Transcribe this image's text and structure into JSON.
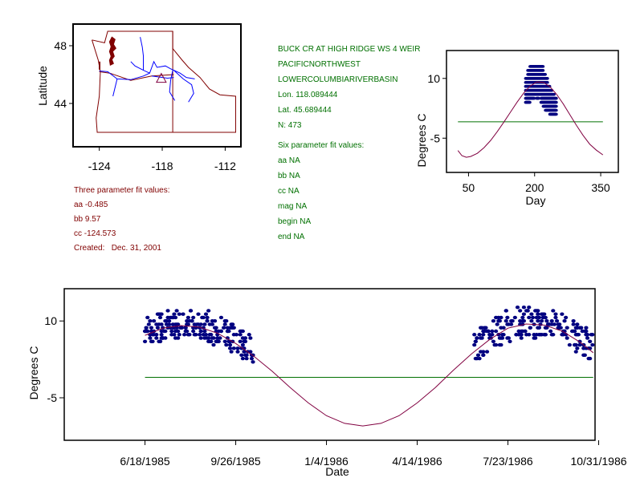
{
  "colors": {
    "text_green": "#007000",
    "text_red": "#800000",
    "points": "#000080",
    "fit_curve": "#800040",
    "mean_line": "#007000",
    "state_borders": "#800000",
    "rivers": "#0000ff",
    "site_marker": "#800040"
  },
  "station": {
    "name": "BUCK CR AT HIGH RIDGE WS 4 WEIR",
    "region": "PACIFICNORTHWEST",
    "basin": "LOWERCOLUMBIARIVERBASIN",
    "lon": "Lon. 118.089444",
    "lat": "Lat. 45.689444",
    "n": "N: 473"
  },
  "three_param": {
    "title": "Three parameter fit values:",
    "aa": "aa -0.485",
    "bb": "bb 9.57",
    "cc": "cc -124.573",
    "created": "Created:   Dec. 31, 2001"
  },
  "six_param": {
    "title": "Six parameter fit values:",
    "aa": "aa NA",
    "bb": "bb NA",
    "cc": "cc NA",
    "mag": "mag NA",
    "begin": "begin NA",
    "end": "end NA"
  },
  "chart_data": [
    {
      "type": "map",
      "title": "",
      "xlabel": "",
      "ylabel": "Latitude",
      "xlim": [
        -126.5,
        -110.5
      ],
      "ylim": [
        41,
        49.5
      ],
      "x_ticks": [
        -124,
        -118,
        -112
      ],
      "x_tick_labels": [
        "-124",
        "-118",
        "-112"
      ],
      "y_ticks": [
        48,
        44
      ],
      "y_tick_labels": [
        "48",
        "44"
      ],
      "site": {
        "lon": -118.089444,
        "lat": 45.689444,
        "marker": "triangle"
      }
    },
    {
      "type": "scatter",
      "title": "",
      "xlabel": "Day",
      "ylabel": "Degrees C",
      "xlim": [
        0,
        390
      ],
      "ylim": [
        -13.6,
        17
      ],
      "x_ticks": [
        50,
        200,
        350
      ],
      "x_tick_labels": [
        "50",
        "200",
        "350"
      ],
      "y_ticks": [
        10,
        -5
      ],
      "y_tick_labels": [
        "10",
        "-5"
      ],
      "mean_line": {
        "y": -0.9,
        "x_range": [
          26,
          355
        ]
      },
      "fit_curve": {
        "x": [
          26,
          35,
          45,
          55,
          70,
          85,
          100,
          115,
          130,
          145,
          160,
          175,
          190,
          205,
          220,
          235,
          250,
          265,
          280,
          295,
          310,
          325,
          340,
          355
        ],
        "y": [
          -8.1,
          -9.4,
          -9.8,
          -9.6,
          -8.8,
          -7.4,
          -5.6,
          -3.4,
          -1.0,
          1.5,
          4.0,
          6.3,
          8.1,
          9.1,
          9.0,
          7.9,
          6.0,
          3.6,
          0.9,
          -1.8,
          -4.3,
          -6.5,
          -8.0,
          -9.2
        ]
      },
      "points": {
        "days": [
          180,
          185,
          190,
          195,
          200,
          205,
          210,
          215,
          220,
          225,
          230,
          235,
          240,
          245
        ],
        "temps_per_day": [
          [
            4,
            5,
            6,
            7,
            8,
            9,
            10
          ],
          [
            4,
            5,
            6,
            7,
            8,
            9,
            10,
            11,
            12
          ],
          [
            5,
            6,
            7,
            8,
            9,
            10,
            11,
            12,
            13
          ],
          [
            5,
            6,
            7,
            8,
            9,
            10,
            11,
            12,
            13
          ],
          [
            6,
            7,
            8,
            9,
            10,
            11,
            12,
            13
          ],
          [
            5,
            6,
            7,
            8,
            9,
            10,
            11,
            12,
            13
          ],
          [
            6,
            7,
            8,
            9,
            10,
            11,
            12,
            13
          ],
          [
            4,
            5,
            6,
            7,
            8,
            9,
            10,
            11,
            12,
            13
          ],
          [
            3,
            4,
            5,
            6,
            7,
            8,
            9,
            10,
            11
          ],
          [
            2,
            3,
            4,
            5,
            6,
            7,
            8,
            9,
            10
          ],
          [
            2,
            3,
            4,
            5,
            6,
            7,
            8
          ],
          [
            1,
            2,
            3,
            4,
            5,
            6,
            7
          ],
          [
            1,
            2,
            3,
            4,
            5,
            6
          ],
          [
            1,
            2,
            3,
            4,
            5
          ]
        ]
      }
    },
    {
      "type": "scatter",
      "title": "",
      "xlabel": "Date",
      "ylabel": "Degrees C",
      "x_unit": "days since 6/18/1985",
      "xlim": [
        -89,
        496
      ],
      "ylim": [
        -13.3,
        16.3
      ],
      "x_ticks": [
        0,
        100,
        200,
        300,
        400,
        500
      ],
      "x_tick_labels": [
        "6/18/1985",
        "9/26/1985",
        "1/4/1986",
        "4/14/1986",
        "7/23/1986",
        "10/31/1986"
      ],
      "y_ticks": [
        10,
        -5
      ],
      "y_tick_labels": [
        "10",
        "-5"
      ],
      "mean_line": {
        "y": -1.0,
        "x_range": [
          0,
          494
        ]
      },
      "fit_curve": {
        "x": [
          0,
          20,
          40,
          60,
          80,
          100,
          120,
          140,
          160,
          180,
          200,
          220,
          240,
          260,
          280,
          300,
          320,
          340,
          360,
          380,
          400,
          420,
          440,
          460,
          480,
          494
        ],
        "y": [
          7.2,
          8.6,
          9.1,
          8.8,
          7.6,
          5.6,
          3.1,
          0.2,
          -3.0,
          -6.0,
          -8.5,
          -10.0,
          -10.5,
          -10.0,
          -8.5,
          -6.0,
          -3.0,
          0.4,
          3.6,
          6.4,
          8.6,
          9.4,
          9.2,
          8.0,
          5.8,
          3.8
        ]
      },
      "points": {
        "segments": [
          {
            "x_range": [
              0,
              120
            ],
            "description": "1985 summer observations"
          },
          {
            "x_range": [
              363,
              494
            ],
            "description": "1986 summer observations"
          }
        ]
      }
    }
  ],
  "map_labels": {
    "ylabel": "Latitude"
  }
}
